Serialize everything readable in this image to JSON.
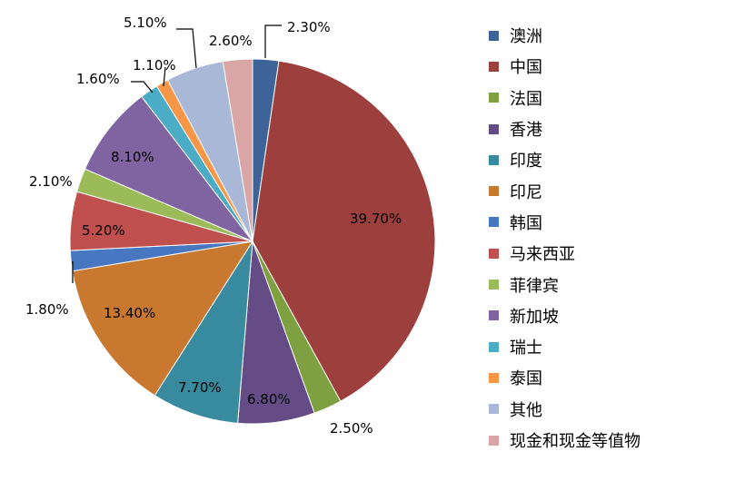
{
  "chart_data": {
    "type": "pie",
    "title": "",
    "legend_position": "right",
    "series": [
      {
        "name": "澳洲",
        "value": 2.3,
        "label": "2.30%",
        "color": "#3d6399"
      },
      {
        "name": "中国",
        "value": 39.7,
        "label": "39.70%",
        "color": "#9d3f3c"
      },
      {
        "name": "法国",
        "value": 2.5,
        "label": "2.50%",
        "color": "#7ea041"
      },
      {
        "name": "香港",
        "value": 6.8,
        "label": "6.80%",
        "color": "#664c87"
      },
      {
        "name": "印度",
        "value": 7.7,
        "label": "7.70%",
        "color": "#388a9e"
      },
      {
        "name": "印尼",
        "value": 13.4,
        "label": "13.40%",
        "color": "#c8782f"
      },
      {
        "name": "韩国",
        "value": 1.8,
        "label": "1.80%",
        "color": "#4677c0"
      },
      {
        "name": "马来西亚",
        "value": 5.2,
        "label": "5.20%",
        "color": "#c0504d"
      },
      {
        "name": "菲律宾",
        "value": 2.1,
        "label": "2.10%",
        "color": "#9bbb59"
      },
      {
        "name": "新加坡",
        "value": 8.1,
        "label": "8.10%",
        "color": "#8064a2"
      },
      {
        "name": "瑞士",
        "value": 1.6,
        "label": "1.60%",
        "color": "#4bacc6"
      },
      {
        "name": "泰国",
        "value": 1.1,
        "label": "1.10%",
        "color": "#f79646"
      },
      {
        "name": "其他",
        "value": 5.1,
        "label": "5.10%",
        "color": "#aab8d8"
      },
      {
        "name": "现金和现金等值物",
        "value": 2.6,
        "label": "2.60%",
        "color": "#d9a6a5"
      }
    ]
  }
}
